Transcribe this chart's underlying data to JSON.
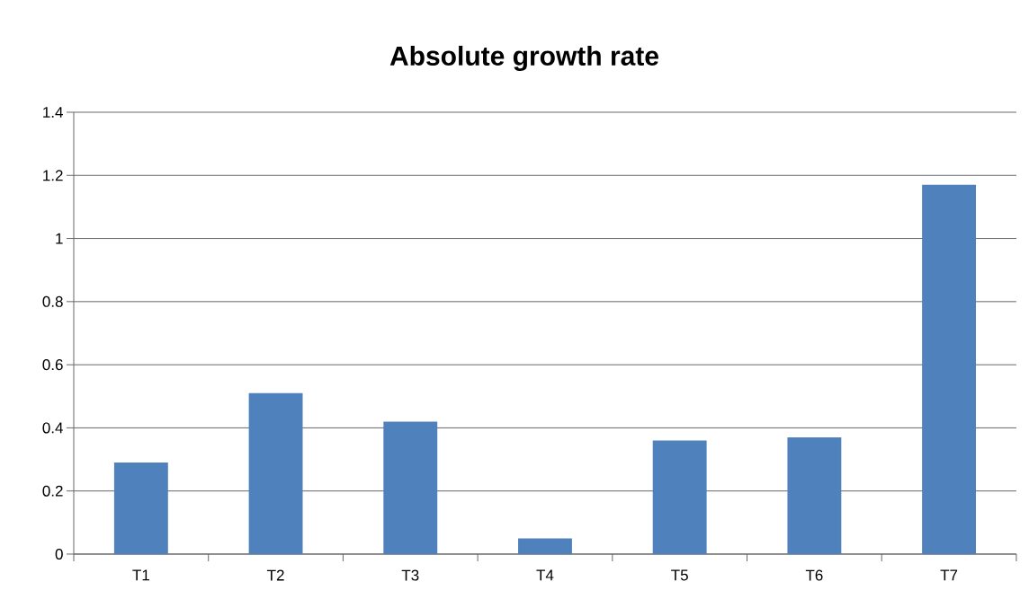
{
  "chart_data": {
    "type": "bar",
    "title": "Absolute growth rate",
    "categories": [
      "T1",
      "T2",
      "T3",
      "T4",
      "T5",
      "T6",
      "T7"
    ],
    "values": [
      0.29,
      0.51,
      0.42,
      0.05,
      0.36,
      0.37,
      1.17
    ],
    "color": "#4f81bd",
    "ylim": [
      0,
      1.4
    ],
    "yticks": [
      0,
      0.2,
      0.4,
      0.6,
      0.8,
      1,
      1.2,
      1.4
    ],
    "grid": "y"
  }
}
